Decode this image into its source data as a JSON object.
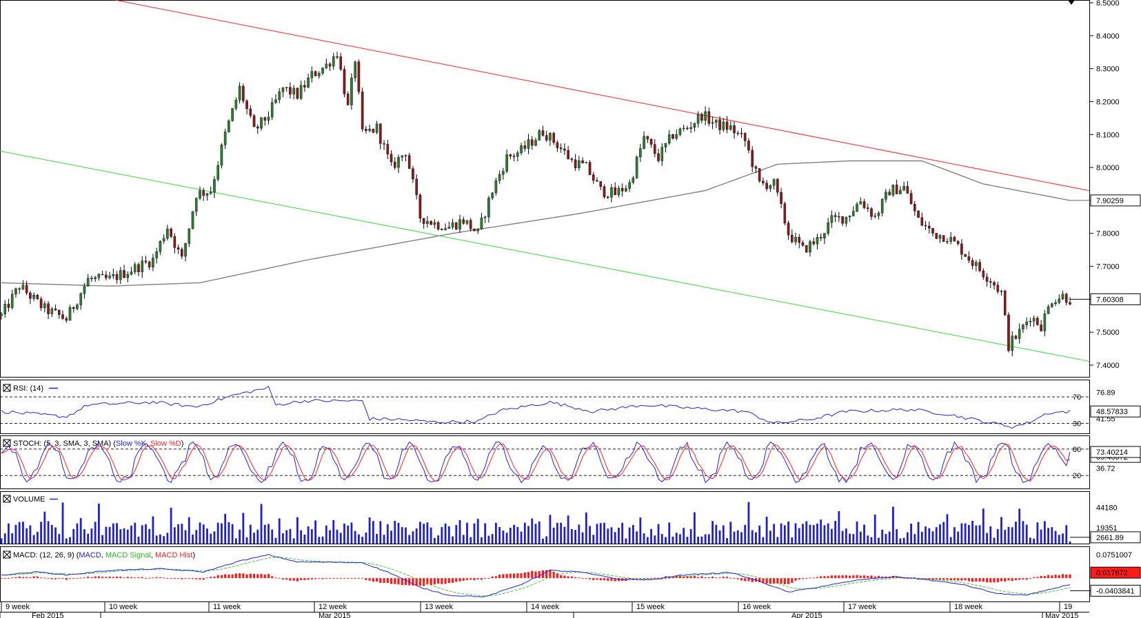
{
  "colors": {
    "up_candle": "#2e7d32",
    "down_candle": "#8b1a1a",
    "upper_channel": "#ff2020",
    "lower_channel": "#33dd33",
    "moving_average": "#808080",
    "rsi_line": "#2020e0",
    "stoch_k": "#2020e0",
    "stoch_d": "#ff2020",
    "volume": "#1f1fcc",
    "macd_line": "#2020e0",
    "macd_signal": "#33cc33",
    "macd_hist": "#ff1a1a"
  },
  "chart_data": [
    {
      "type": "candlestick",
      "pane": "price",
      "ylim": [
        7.35,
        8.5
      ],
      "y_ticks": [
        "8.5000",
        "8.4000",
        "8.3000",
        "8.2000",
        "8.1000",
        "8.0000",
        "7.9000",
        "7.8000",
        "7.7000",
        "7.6000",
        "7.5000",
        "7.4000"
      ],
      "price_anchors": [
        [
          0,
          7.55
        ],
        [
          5,
          7.64
        ],
        [
          12,
          7.57
        ],
        [
          18,
          7.54
        ],
        [
          24,
          7.66
        ],
        [
          30,
          7.66
        ],
        [
          36,
          7.69
        ],
        [
          42,
          7.72
        ],
        [
          46,
          7.82
        ],
        [
          50,
          7.72
        ],
        [
          54,
          7.92
        ],
        [
          58,
          7.93
        ],
        [
          62,
          8.1
        ],
        [
          66,
          8.24
        ],
        [
          70,
          8.11
        ],
        [
          74,
          8.16
        ],
        [
          78,
          8.24
        ],
        [
          82,
          8.22
        ],
        [
          86,
          8.28
        ],
        [
          90,
          8.31
        ],
        [
          93,
          8.35
        ],
        [
          96,
          8.18
        ],
        [
          98,
          8.33
        ],
        [
          100,
          8.1
        ],
        [
          104,
          8.12
        ],
        [
          108,
          8.0
        ],
        [
          112,
          8.05
        ],
        [
          116,
          7.85
        ],
        [
          120,
          7.83
        ],
        [
          124,
          7.82
        ],
        [
          128,
          7.84
        ],
        [
          132,
          7.8
        ],
        [
          136,
          7.93
        ],
        [
          140,
          8.03
        ],
        [
          144,
          8.05
        ],
        [
          148,
          8.09
        ],
        [
          150,
          8.11
        ],
        [
          154,
          8.07
        ],
        [
          158,
          8.02
        ],
        [
          162,
          8.0
        ],
        [
          166,
          7.93
        ],
        [
          170,
          7.92
        ],
        [
          174,
          7.95
        ],
        [
          178,
          8.09
        ],
        [
          182,
          8.03
        ],
        [
          186,
          8.1
        ],
        [
          190,
          8.12
        ],
        [
          194,
          8.16
        ],
        [
          198,
          8.13
        ],
        [
          202,
          8.12
        ],
        [
          206,
          8.08
        ],
        [
          210,
          7.95
        ],
        [
          214,
          7.95
        ],
        [
          218,
          7.8
        ],
        [
          222,
          7.75
        ],
        [
          226,
          7.78
        ],
        [
          230,
          7.84
        ],
        [
          234,
          7.85
        ],
        [
          238,
          7.9
        ],
        [
          242,
          7.85
        ],
        [
          246,
          7.93
        ],
        [
          250,
          7.94
        ],
        [
          254,
          7.84
        ],
        [
          258,
          7.8
        ],
        [
          262,
          7.79
        ],
        [
          266,
          7.75
        ],
        [
          270,
          7.7
        ],
        [
          274,
          7.66
        ],
        [
          277,
          7.62
        ],
        [
          279,
          7.46
        ],
        [
          282,
          7.5
        ],
        [
          285,
          7.55
        ],
        [
          288,
          7.52
        ],
        [
          291,
          7.6
        ],
        [
          294,
          7.61
        ],
        [
          296,
          7.6
        ]
      ],
      "moving_average": [
        [
          0,
          7.65
        ],
        [
          30,
          7.64
        ],
        [
          55,
          7.65
        ],
        [
          85,
          7.72
        ],
        [
          125,
          7.8
        ],
        [
          160,
          7.86
        ],
        [
          195,
          7.93
        ],
        [
          215,
          8.01
        ],
        [
          235,
          8.02
        ],
        [
          255,
          8.02
        ],
        [
          272,
          7.95
        ],
        [
          296,
          7.9
        ]
      ],
      "upper_channel": [
        [
          0,
          8.53
        ],
        [
          296,
          7.94
        ]
      ],
      "lower_channel": [
        [
          0,
          8.05
        ],
        [
          296,
          7.42
        ]
      ],
      "last_ma_label": "7.90259",
      "last_price_label": "7.60308"
    },
    {
      "type": "line",
      "pane": "rsi",
      "title": "RSI: (14)",
      "ylim": [
        15,
        95
      ],
      "levels": [
        70,
        30
      ],
      "level_labels": [
        "70",
        "30"
      ],
      "scale_labels": [
        "76.89",
        "41.55"
      ],
      "last_label": "48.57833",
      "values": [
        [
          0,
          48
        ],
        [
          18,
          40
        ],
        [
          24,
          58
        ],
        [
          42,
          62
        ],
        [
          54,
          55
        ],
        [
          64,
          72
        ],
        [
          74,
          84
        ],
        [
          76,
          58
        ],
        [
          84,
          64
        ],
        [
          100,
          64
        ],
        [
          102,
          37
        ],
        [
          110,
          36
        ],
        [
          120,
          32
        ],
        [
          132,
          33
        ],
        [
          138,
          49
        ],
        [
          152,
          62
        ],
        [
          164,
          48
        ],
        [
          178,
          58
        ],
        [
          194,
          52
        ],
        [
          206,
          48
        ],
        [
          214,
          30
        ],
        [
          224,
          36
        ],
        [
          234,
          48
        ],
        [
          252,
          51
        ],
        [
          262,
          44
        ],
        [
          272,
          33
        ],
        [
          280,
          25
        ],
        [
          284,
          30
        ],
        [
          290,
          46
        ],
        [
          296,
          48
        ]
      ]
    },
    {
      "type": "line",
      "pane": "stoch",
      "title": "STOCH: (5, 3, SMA, 3, SMA)",
      "series": [
        {
          "name": "Slow %K"
        },
        {
          "name": "Slow %D"
        }
      ],
      "ylim": [
        0,
        100
      ],
      "levels": [
        80,
        20
      ],
      "level_labels": [
        "80",
        "20"
      ],
      "scale_labels": [
        "36.72"
      ],
      "last_label_k": "73.40214",
      "last_label_d": "65.45072"
    },
    {
      "type": "bar",
      "pane": "volume",
      "title": "VOLUME",
      "ylim": [
        0,
        60000
      ],
      "scale_labels": [
        "44180",
        "19351"
      ],
      "last_label": "2661.89"
    },
    {
      "type": "line",
      "pane": "macd",
      "title": "MACD: (12, 26, 9)",
      "series": [
        {
          "name": "MACD"
        },
        {
          "name": "MACD Signal"
        },
        {
          "name": "MACD Hist"
        }
      ],
      "ylim": [
        -0.075,
        0.1
      ],
      "scale_labels": [
        "0.0751007"
      ],
      "last_label_hist": "0.017672",
      "last_label_macd": "-0.0403841",
      "values": [
        [
          0,
          0.01
        ],
        [
          10,
          0.02
        ],
        [
          18,
          0.01
        ],
        [
          30,
          0.025
        ],
        [
          44,
          0.03
        ],
        [
          56,
          0.02
        ],
        [
          66,
          0.055
        ],
        [
          74,
          0.075
        ],
        [
          82,
          0.052
        ],
        [
          100,
          0.05
        ],
        [
          108,
          0.015
        ],
        [
          116,
          -0.03
        ],
        [
          124,
          -0.055
        ],
        [
          134,
          -0.06
        ],
        [
          144,
          -0.02
        ],
        [
          152,
          0.025
        ],
        [
          160,
          0.02
        ],
        [
          172,
          -0.005
        ],
        [
          180,
          -0.005
        ],
        [
          190,
          0.012
        ],
        [
          202,
          0.018
        ],
        [
          210,
          -0.01
        ],
        [
          218,
          -0.045
        ],
        [
          228,
          -0.025
        ],
        [
          238,
          -0.005
        ],
        [
          248,
          0.005
        ],
        [
          256,
          -0.005
        ],
        [
          266,
          -0.02
        ],
        [
          276,
          -0.05
        ],
        [
          284,
          -0.055
        ],
        [
          296,
          -0.02
        ]
      ]
    }
  ],
  "x_axis": {
    "week_labels": [
      "9 week",
      "10 week",
      "11 week",
      "12 week",
      "13 week",
      "14 week",
      "15 week",
      "16 week",
      "17 week",
      "18 week",
      "19"
    ],
    "month_labels": [
      "Feb 2015",
      "Mar 2015",
      "Apr 2015",
      "May 2015"
    ]
  }
}
